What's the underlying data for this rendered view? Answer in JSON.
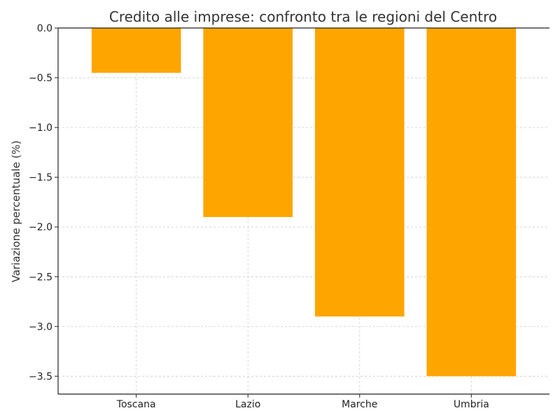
{
  "chart_data": {
    "type": "bar",
    "title": "Credito alle imprese: confronto tra le regioni del Centro",
    "xlabel": "",
    "ylabel": "Variazione percentuale (%)",
    "categories": [
      "Toscana",
      "Lazio",
      "Marche",
      "Umbria"
    ],
    "values": [
      -0.45,
      -1.9,
      -2.9,
      -3.5
    ],
    "ylim": [
      -3.68,
      0.0
    ],
    "yticks": [
      0.0,
      -0.5,
      -1.0,
      -1.5,
      -2.0,
      -2.5,
      -3.0,
      -3.5
    ],
    "ytick_labels": [
      "0.0",
      "−0.5",
      "−1.0",
      "−1.5",
      "−2.0",
      "−2.5",
      "−3.0",
      "−3.5"
    ],
    "bar_color": "#FFA500",
    "grid": true
  }
}
